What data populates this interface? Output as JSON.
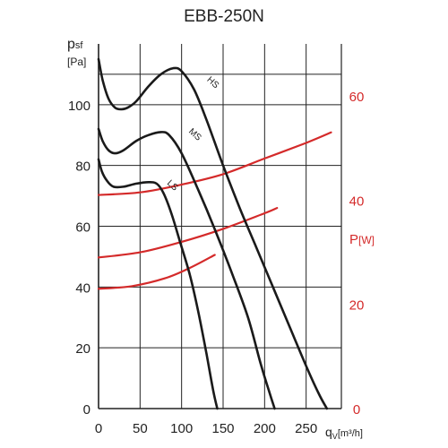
{
  "chart_data": {
    "type": "line",
    "title": "EBB-250N",
    "xlabel": "q",
    "xlabel_sub": "V",
    "xlabel_unit": "[m³/h]",
    "ylabel": "p",
    "ylabel_sub": "sf",
    "ylabel_unit": "[Pa]",
    "y2label": "P",
    "y2label_unit": "[W]",
    "xlim": [
      0,
      300
    ],
    "ylim": [
      0,
      120
    ],
    "y2lim": [
      0,
      70
    ],
    "x_ticks": [
      0,
      50,
      100,
      150,
      200,
      250
    ],
    "y_ticks": [
      0,
      20,
      40,
      60,
      80,
      100
    ],
    "y2_ticks": [
      0,
      20,
      40,
      60
    ],
    "grid": true,
    "colors": {
      "pressure": "#1a1a1a",
      "power": "#d42a2a",
      "grid": "#222222"
    },
    "pressure_series": [
      {
        "name": "HS",
        "label_at": [
          130,
          108
        ],
        "x": [
          0,
          5,
          12,
          20,
          28,
          35,
          45,
          60,
          75,
          90,
          100,
          115,
          130,
          150,
          170,
          190,
          210,
          230,
          250,
          265,
          275
        ],
        "y": [
          115,
          108,
          102,
          99,
          98.5,
          99,
          101,
          106,
          110,
          112,
          111,
          105,
          95,
          80,
          66,
          53,
          40,
          27,
          14,
          5,
          0
        ]
      },
      {
        "name": "MS",
        "label_at": [
          108,
          91
        ],
        "x": [
          0,
          5,
          12,
          20,
          30,
          45,
          60,
          75,
          85,
          100,
          120,
          140,
          160,
          180,
          195,
          205,
          212
        ],
        "y": [
          92,
          88,
          85,
          84,
          85,
          88,
          90,
          91,
          90,
          84,
          72,
          59,
          45,
          30,
          15,
          6,
          0
        ]
      },
      {
        "name": "LS",
        "label_at": [
          82,
          74
        ],
        "x": [
          0,
          4,
          10,
          18,
          30,
          45,
          60,
          70,
          78,
          88,
          98,
          110,
          120,
          130,
          138,
          143
        ],
        "y": [
          82,
          78,
          75,
          73,
          73,
          74,
          74.5,
          74,
          71,
          64,
          55,
          44,
          32,
          18,
          6,
          0
        ]
      }
    ],
    "power_series": [
      {
        "name": "HS",
        "x": [
          0,
          50,
          100,
          150,
          200,
          250,
          280
        ],
        "y": [
          41,
          41.5,
          43,
          45,
          48,
          51,
          53
        ]
      },
      {
        "name": "MS",
        "x": [
          0,
          50,
          100,
          150,
          200,
          215
        ],
        "y": [
          29,
          30,
          32,
          34.5,
          37.5,
          38.5
        ]
      },
      {
        "name": "LS",
        "x": [
          0,
          40,
          80,
          110,
          140
        ],
        "y": [
          23,
          23.5,
          25,
          27,
          29.5
        ]
      }
    ]
  }
}
